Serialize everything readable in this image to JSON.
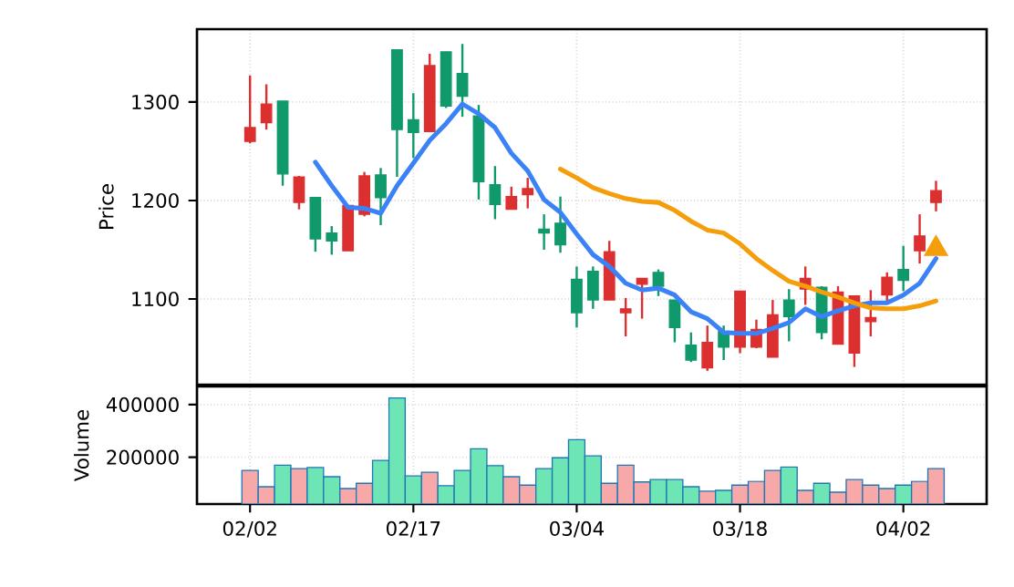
{
  "chart_data": [
    {
      "type": "candlestick",
      "ylabel": "Price",
      "ylim": [
        1013,
        1374
      ],
      "yticks": [
        1100,
        1200,
        1300
      ],
      "grid": true,
      "tick_labels": "y",
      "categories": [
        null,
        null,
        null,
        null,
        null,
        null,
        null,
        null,
        null,
        null,
        null,
        null,
        null,
        null,
        null,
        null,
        null,
        null,
        null,
        null,
        null,
        null,
        null,
        null,
        null,
        null,
        null,
        null,
        null,
        null,
        null,
        null,
        null,
        null,
        null,
        null,
        null,
        null,
        null,
        null,
        null,
        null,
        null
      ],
      "ohlc": [
        [
          1260,
          1327,
          1258,
          1274
        ],
        [
          1279,
          1318,
          1272,
          1298
        ],
        [
          1301,
          1301,
          1215,
          1227
        ],
        [
          1198,
          1225,
          1191,
          1224
        ],
        [
          1203,
          1203,
          1148,
          1161
        ],
        [
          1167,
          1174,
          1145,
          1159
        ],
        [
          1149,
          1195,
          1149,
          1195
        ],
        [
          1186,
          1229,
          1184,
          1225
        ],
        [
          1226,
          1233,
          1175,
          1203
        ],
        [
          1353,
          1353,
          1224,
          1272
        ],
        [
          1282,
          1309,
          1243,
          1269
        ],
        [
          1270,
          1349,
          1270,
          1337
        ],
        [
          1351,
          1351,
          1294,
          1296
        ],
        [
          1329,
          1359,
          1285,
          1306
        ],
        [
          1286,
          1297,
          1201,
          1219
        ],
        [
          1216,
          1235,
          1181,
          1196
        ],
        [
          1191,
          1214,
          1191,
          1204
        ],
        [
          1206,
          1223,
          1192,
          1212
        ],
        [
          1171,
          1186,
          1150,
          1167
        ],
        [
          1177,
          1204,
          1147,
          1155
        ],
        [
          1120,
          1133,
          1071,
          1086
        ],
        [
          1128,
          1133,
          1090,
          1099
        ],
        [
          1099,
          1159,
          1099,
          1148
        ],
        [
          1086,
          1101,
          1062,
          1090
        ],
        [
          1115,
          1121,
          1080,
          1121
        ],
        [
          1127,
          1130,
          1103,
          1113
        ],
        [
          1099,
          1099,
          1056,
          1071
        ],
        [
          1053,
          1066,
          1036,
          1038
        ],
        [
          1030,
          1073,
          1027,
          1056
        ],
        [
          1067,
          1073,
          1038,
          1051
        ],
        [
          1051,
          1108,
          1045,
          1108
        ],
        [
          1051,
          1079,
          1050,
          1069
        ],
        [
          1041,
          1099,
          1041,
          1084
        ],
        [
          1099,
          1110,
          1057,
          1082
        ],
        [
          1110,
          1133,
          1094,
          1121
        ],
        [
          1112,
          1113,
          1059,
          1066
        ],
        [
          1054,
          1113,
          1054,
          1107
        ],
        [
          1045,
          1103,
          1031,
          1103
        ],
        [
          1077,
          1109,
          1062,
          1081
        ],
        [
          1104,
          1127,
          1096,
          1122
        ],
        [
          1130,
          1154,
          1108,
          1119
        ],
        [
          1149,
          1186,
          1136,
          1164
        ],
        [
          1198,
          1220,
          1189,
          1210
        ]
      ],
      "colors": [
        "#dc2f2f",
        "#dc2f2f",
        "#10996b",
        "#dc2f2f",
        "#10996b",
        "#10996b",
        "#dc2f2f",
        "#dc2f2f",
        "#10996b",
        "#10996b",
        "#10996b",
        "#dc2f2f",
        "#10996b",
        "#10996b",
        "#10996b",
        "#10996b",
        "#dc2f2f",
        "#dc2f2f",
        "#10996b",
        "#10996b",
        "#10996b",
        "#10996b",
        "#dc2f2f",
        "#dc2f2f",
        "#dc2f2f",
        "#10996b",
        "#10996b",
        "#10996b",
        "#dc2f2f",
        "#10996b",
        "#dc2f2f",
        "#dc2f2f",
        "#dc2f2f",
        "#10996b",
        "#dc2f2f",
        "#10996b",
        "#dc2f2f",
        "#dc2f2f",
        "#dc2f2f",
        "#dc2f2f",
        "#10996b",
        "#dc2f2f",
        "#dc2f2f"
      ],
      "series": [
        {
          "type": "line",
          "color": "#3b82f6",
          "values": [
            null,
            null,
            null,
            null,
            1239,
            1215,
            1193,
            1192,
            1187,
            1215,
            1238,
            1261,
            1278,
            1298,
            1288,
            1274,
            1248,
            1230,
            1201,
            1188,
            1166,
            1145,
            1133,
            1116,
            1109,
            1111,
            1104,
            1087,
            1080,
            1066,
            1065,
            1065,
            1070,
            1076,
            1090,
            1082,
            1088,
            1093,
            1096,
            1096,
            1104,
            1116,
            1141
          ]
        },
        {
          "type": "line",
          "color": "#f59e0b",
          "values": [
            null,
            null,
            null,
            null,
            null,
            null,
            null,
            null,
            null,
            null,
            null,
            null,
            null,
            null,
            null,
            null,
            null,
            null,
            null,
            1232,
            1223,
            1213,
            1207,
            1202,
            1199,
            1198,
            1190,
            1179,
            1170,
            1167,
            1156,
            1141,
            1129,
            1118,
            1113,
            1107,
            1102,
            1096,
            1091,
            1090,
            1090,
            1093,
            1098
          ]
        },
        {
          "type": "scatter",
          "color": "#f59e0b",
          "marker": "triangle",
          "values": [
            null,
            null,
            null,
            null,
            null,
            null,
            null,
            null,
            null,
            null,
            null,
            null,
            null,
            null,
            null,
            null,
            null,
            null,
            null,
            null,
            null,
            null,
            null,
            null,
            null,
            null,
            null,
            null,
            null,
            null,
            null,
            null,
            null,
            null,
            null,
            null,
            null,
            null,
            null,
            null,
            null,
            null,
            1151
          ]
        }
      ]
    },
    {
      "type": "bar",
      "ylabel": "Volume",
      "ylim": [
        22000,
        469000
      ],
      "yticks": [
        200000,
        400000
      ],
      "grid": true,
      "categories": [
        "02/02",
        null,
        null,
        null,
        null,
        null,
        null,
        null,
        null,
        null,
        "02/17",
        null,
        null,
        null,
        null,
        null,
        null,
        null,
        null,
        null,
        "03/04",
        null,
        null,
        null,
        null,
        null,
        null,
        null,
        null,
        null,
        "03/18",
        null,
        null,
        null,
        null,
        null,
        null,
        null,
        null,
        null,
        "04/02",
        null,
        null
      ],
      "values": [
        150000,
        88000,
        170000,
        157000,
        161000,
        126000,
        81000,
        101000,
        188000,
        425000,
        129000,
        143000,
        92000,
        150000,
        232000,
        168000,
        126000,
        94000,
        157000,
        198000,
        267000,
        205000,
        101000,
        170000,
        106000,
        115000,
        115000,
        88000,
        71000,
        74000,
        94000,
        108000,
        150000,
        163000,
        74000,
        101000,
        67000,
        115000,
        94000,
        81000,
        94000,
        108000,
        157000
      ],
      "colors": [
        "#f7a8a8",
        "#f7a8a8",
        "#6de5b5",
        "#f7a8a8",
        "#6de5b5",
        "#6de5b5",
        "#f7a8a8",
        "#f7a8a8",
        "#6de5b5",
        "#6de5b5",
        "#6de5b5",
        "#f7a8a8",
        "#6de5b5",
        "#6de5b5",
        "#6de5b5",
        "#6de5b5",
        "#f7a8a8",
        "#f7a8a8",
        "#6de5b5",
        "#6de5b5",
        "#6de5b5",
        "#6de5b5",
        "#f7a8a8",
        "#f7a8a8",
        "#f7a8a8",
        "#6de5b5",
        "#6de5b5",
        "#6de5b5",
        "#f7a8a8",
        "#6de5b5",
        "#f7a8a8",
        "#f7a8a8",
        "#f7a8a8",
        "#6de5b5",
        "#f7a8a8",
        "#6de5b5",
        "#f7a8a8",
        "#f7a8a8",
        "#f7a8a8",
        "#f7a8a8",
        "#6de5b5",
        "#f7a8a8",
        "#f7a8a8"
      ]
    }
  ]
}
